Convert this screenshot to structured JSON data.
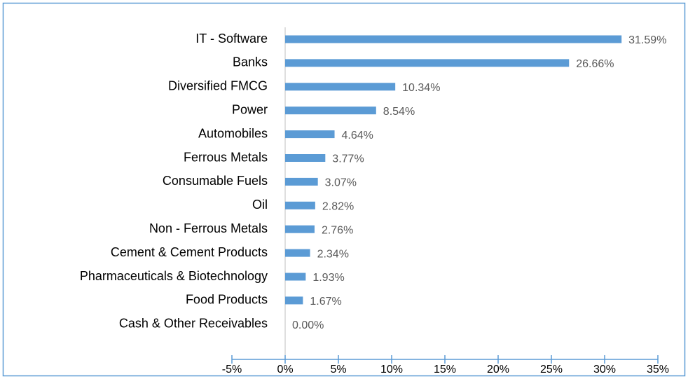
{
  "chart_data": {
    "type": "bar",
    "orientation": "horizontal",
    "categories": [
      "IT - Software",
      "Banks",
      "Diversified FMCG",
      "Power",
      "Automobiles",
      "Ferrous Metals",
      "Consumable Fuels",
      "Oil",
      "Non - Ferrous Metals",
      "Cement & Cement Products",
      "Pharmaceuticals & Biotechnology",
      "Food Products",
      "Cash & Other Receivables"
    ],
    "values": [
      31.59,
      26.66,
      10.34,
      8.54,
      4.64,
      3.77,
      3.07,
      2.82,
      2.76,
      2.34,
      1.93,
      1.67,
      0
    ],
    "value_labels": [
      "31.59%",
      "26.66%",
      "10.34%",
      "8.54%",
      "4.64%",
      "3.77%",
      "3.07%",
      "2.82%",
      "2.76%",
      "2.34%",
      "1.93%",
      "1.67%",
      "0.00%"
    ],
    "color": "#5b9bd5",
    "xlim": [
      -5,
      35
    ],
    "xticks": [
      {
        "value": -5,
        "label": "-5%"
      },
      {
        "value": 0,
        "label": "0%"
      },
      {
        "value": 5,
        "label": "5%"
      },
      {
        "value": 10,
        "label": "10%"
      },
      {
        "value": 15,
        "label": "15%"
      },
      {
        "value": 20,
        "label": "20%"
      },
      {
        "value": 25,
        "label": "25%"
      },
      {
        "value": 30,
        "label": "30%"
      },
      {
        "value": 35,
        "label": "35%"
      }
    ]
  }
}
